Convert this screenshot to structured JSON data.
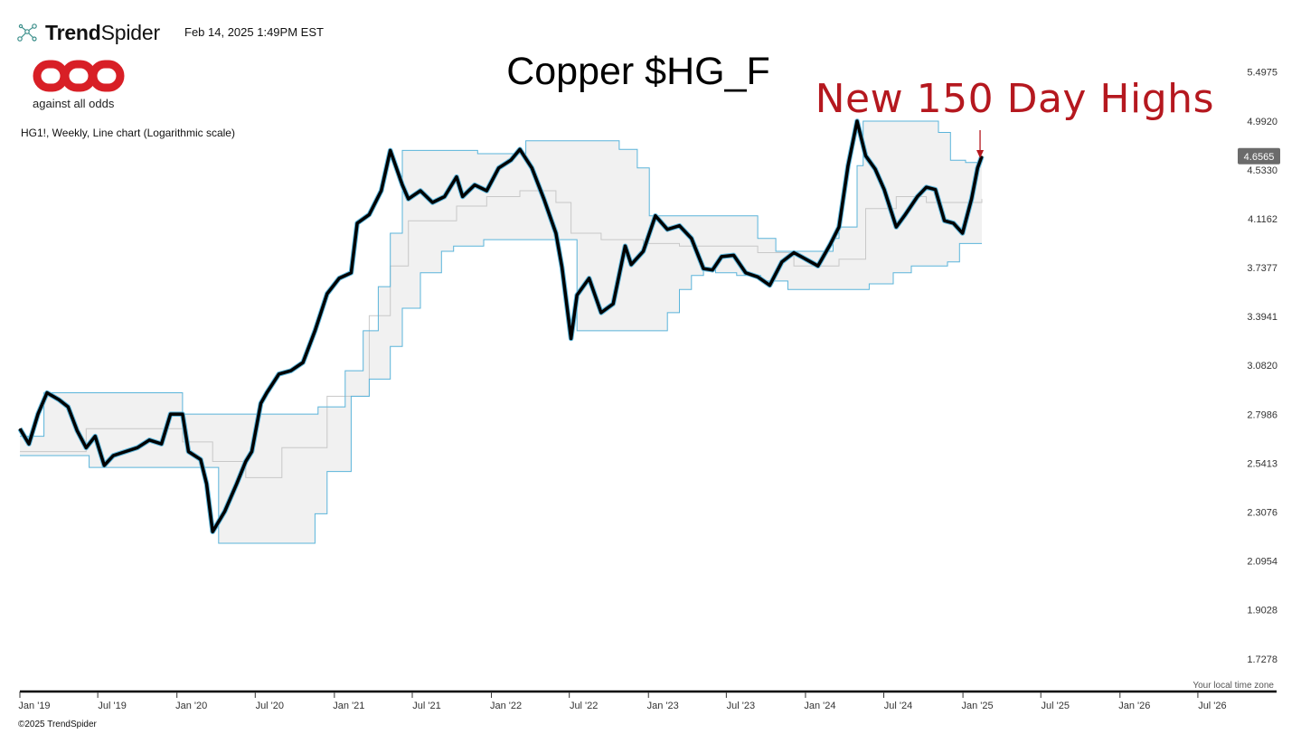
{
  "header": {
    "brand_bold": "Trend",
    "brand_light": "Spider",
    "timestamp": "Feb 14, 2025 1:49PM EST",
    "logo_tagline": "against all odds",
    "chart_description": "HG1!, Weekly, Line chart (Logarithmic scale)"
  },
  "footer": {
    "copyright": "©2025 TrendSpider",
    "timezone_note": "Your local time zone"
  },
  "colors": {
    "price_line": "#000000",
    "channel_line": "#5ab4da",
    "channel_fill": "#f1f1f1",
    "midline": "#c8c8c8",
    "annotation_red": "#b5181f",
    "logo_red": "#d81f26"
  },
  "chart_data": {
    "type": "line",
    "title": "Copper $HG_F",
    "annotation": "New 150 Day Highs",
    "scale": "log",
    "last_price_label": "4.6565",
    "y_ticks": [
      "5.4975",
      "4.9920",
      "4.5330",
      "4.1162",
      "3.7377",
      "3.3941",
      "3.0820",
      "2.7986",
      "2.5413",
      "2.3076",
      "2.0954",
      "1.9028",
      "1.7278"
    ],
    "x_ticks": [
      "Jan '19",
      "Jul '19",
      "Jan '20",
      "Jul '20",
      "Jan '21",
      "Jul '21",
      "Jan '22",
      "Jul '22",
      "Jan '23",
      "Jul '23",
      "Jan '24",
      "Jul '24",
      "Jan '25",
      "Jul '25",
      "Jan '26",
      "Jul '26"
    ],
    "x_range": [
      "2019-01-01",
      "2026-12-31"
    ],
    "ylim": [
      1.6786,
      5.6637
    ],
    "series": [
      {
        "type": "line",
        "x": [
          "2019-01-01",
          "2019-01-22",
          "2019-02-12",
          "2019-03-05",
          "2019-04-02",
          "2019-04-23",
          "2019-05-14",
          "2019-06-04",
          "2019-06-25",
          "2019-07-16",
          "2019-08-06",
          "2019-09-03",
          "2019-10-01",
          "2019-10-29",
          "2019-11-26",
          "2019-12-17",
          "2020-01-14",
          "2020-01-28",
          "2020-02-25",
          "2020-03-10",
          "2020-03-24",
          "2020-04-21",
          "2020-05-19",
          "2020-06-09",
          "2020-06-23",
          "2020-07-14",
          "2020-07-28",
          "2020-08-25",
          "2020-09-22",
          "2020-10-20",
          "2020-11-17",
          "2020-12-15",
          "2021-01-12",
          "2021-02-09",
          "2021-02-23",
          "2021-03-23",
          "2021-04-20",
          "2021-05-11",
          "2021-06-08",
          "2021-06-22",
          "2021-07-20",
          "2021-08-17",
          "2021-09-14",
          "2021-10-12",
          "2021-10-26",
          "2021-11-23",
          "2021-12-21",
          "2022-01-18",
          "2022-02-15",
          "2022-03-08",
          "2022-04-05",
          "2022-05-03",
          "2022-05-31",
          "2022-06-14",
          "2022-07-05",
          "2022-07-19",
          "2022-08-16",
          "2022-09-13",
          "2022-10-11",
          "2022-11-08",
          "2022-11-22",
          "2022-12-20",
          "2023-01-17",
          "2023-02-14",
          "2023-03-14",
          "2023-04-11",
          "2023-05-09",
          "2023-05-30",
          "2023-06-20",
          "2023-07-18",
          "2023-08-15",
          "2023-09-12",
          "2023-10-10",
          "2023-11-07",
          "2023-12-05",
          "2024-01-02",
          "2024-01-30",
          "2024-02-27",
          "2024-03-19",
          "2024-04-09",
          "2024-04-30",
          "2024-05-20",
          "2024-06-11",
          "2024-07-02",
          "2024-07-30",
          "2024-08-20",
          "2024-09-17",
          "2024-10-08",
          "2024-10-29",
          "2024-11-19",
          "2024-12-10",
          "2024-12-31",
          "2025-01-21",
          "2025-02-04",
          "2025-02-14"
        ],
        "y": [
          2.72,
          2.64,
          2.8,
          2.92,
          2.88,
          2.84,
          2.71,
          2.62,
          2.68,
          2.53,
          2.58,
          2.6,
          2.62,
          2.66,
          2.64,
          2.8,
          2.8,
          2.6,
          2.56,
          2.44,
          2.22,
          2.31,
          2.44,
          2.55,
          2.6,
          2.86,
          2.92,
          3.03,
          3.05,
          3.1,
          3.3,
          3.55,
          3.66,
          3.7,
          4.08,
          4.15,
          4.35,
          4.71,
          4.4,
          4.28,
          4.35,
          4.25,
          4.3,
          4.47,
          4.3,
          4.4,
          4.35,
          4.55,
          4.62,
          4.72,
          4.55,
          4.28,
          4.0,
          3.74,
          3.25,
          3.54,
          3.66,
          3.42,
          3.48,
          3.9,
          3.76,
          3.86,
          4.14,
          4.03,
          4.06,
          3.96,
          3.73,
          3.72,
          3.82,
          3.83,
          3.7,
          3.67,
          3.61,
          3.78,
          3.85,
          3.8,
          3.75,
          3.91,
          4.05,
          4.57,
          4.99,
          4.66,
          4.54,
          4.36,
          4.05,
          4.15,
          4.3,
          4.38,
          4.36,
          4.1,
          4.08,
          4.0,
          4.28,
          4.55,
          4.6565
        ]
      },
      {
        "name": "upper",
        "type": "step",
        "x": [
          "2019-01-01",
          "2019-02-12",
          "2019-02-26",
          "2019-10-29",
          "2020-01-14",
          "2020-08-25",
          "2020-09-29",
          "2020-11-24",
          "2021-01-26",
          "2021-03-09",
          "2021-04-13",
          "2021-05-11",
          "2021-06-08",
          "2021-11-02",
          "2021-11-30",
          "2022-01-18",
          "2022-02-01",
          "2022-03-08",
          "2022-03-22",
          "2022-04-05",
          "2022-09-13",
          "2022-10-25",
          "2022-11-22",
          "2022-12-06",
          "2023-01-03",
          "2023-07-04",
          "2023-09-12",
          "2023-10-24",
          "2023-11-21",
          "2024-01-30",
          "2024-02-13",
          "2024-03-05",
          "2024-03-19",
          "2024-04-30",
          "2024-05-14",
          "2024-05-20",
          "2024-10-08",
          "2024-11-05",
          "2024-12-03",
          "2025-01-07",
          "2025-02-14"
        ],
        "y": [
          2.68,
          2.68,
          2.92,
          2.92,
          2.8,
          2.8,
          2.8,
          2.84,
          3.05,
          3.3,
          3.6,
          4.0,
          4.71,
          4.71,
          4.68,
          4.68,
          4.68,
          4.68,
          4.8,
          4.8,
          4.8,
          4.72,
          4.72,
          4.55,
          4.14,
          4.14,
          3.96,
          3.86,
          3.86,
          3.86,
          3.86,
          3.96,
          4.05,
          4.57,
          4.99,
          4.99,
          4.99,
          4.88,
          4.62,
          4.6,
          4.6565
        ]
      },
      {
        "name": "lower",
        "type": "step",
        "x": [
          "2019-01-01",
          "2019-05-14",
          "2019-06-11",
          "2019-09-03",
          "2020-01-14",
          "2020-03-17",
          "2020-04-07",
          "2020-08-04",
          "2020-09-01",
          "2020-09-29",
          "2020-11-03",
          "2020-11-17",
          "2020-12-15",
          "2021-02-09",
          "2021-03-23",
          "2021-05-11",
          "2021-06-08",
          "2021-07-20",
          "2021-09-07",
          "2021-10-05",
          "2021-12-14",
          "2022-01-18",
          "2022-06-28",
          "2022-07-19",
          "2022-09-27",
          "2022-12-13",
          "2023-01-10",
          "2023-02-14",
          "2023-03-14",
          "2023-04-11",
          "2023-05-09",
          "2023-06-06",
          "2023-07-25",
          "2023-09-19",
          "2023-11-21",
          "2024-01-09",
          "2024-02-27",
          "2024-04-30",
          "2024-05-28",
          "2024-07-23",
          "2024-09-03",
          "2024-10-01",
          "2024-11-26",
          "2024-12-24",
          "2025-02-14"
        ],
        "y": [
          2.58,
          2.58,
          2.52,
          2.52,
          2.52,
          2.52,
          2.17,
          2.17,
          2.17,
          2.17,
          2.17,
          2.3,
          2.5,
          2.9,
          3.0,
          3.2,
          3.45,
          3.7,
          3.86,
          3.9,
          3.95,
          3.95,
          3.95,
          3.3,
          3.3,
          3.3,
          3.3,
          3.42,
          3.58,
          3.68,
          3.72,
          3.7,
          3.68,
          3.64,
          3.58,
          3.58,
          3.58,
          3.58,
          3.62,
          3.7,
          3.75,
          3.75,
          3.78,
          3.92,
          3.92
        ]
      },
      {
        "name": "mid",
        "type": "step",
        "x": [
          "2019-01-01",
          "2019-06-04",
          "2019-10-01",
          "2020-01-14",
          "2020-03-24",
          "2020-06-09",
          "2020-09-01",
          "2020-12-15",
          "2021-03-23",
          "2021-05-11",
          "2021-06-22",
          "2021-10-12",
          "2021-12-21",
          "2022-03-08",
          "2022-05-31",
          "2022-07-05",
          "2022-09-13",
          "2022-12-20",
          "2023-03-14",
          "2023-06-20",
          "2023-09-12",
          "2023-12-05",
          "2024-03-19",
          "2024-05-20",
          "2024-07-30",
          "2024-10-08",
          "2025-01-07",
          "2025-02-14"
        ],
        "y": [
          2.6,
          2.72,
          2.72,
          2.65,
          2.55,
          2.47,
          2.62,
          2.9,
          3.4,
          3.75,
          4.1,
          4.22,
          4.3,
          4.35,
          4.25,
          4.0,
          3.95,
          3.92,
          3.9,
          3.9,
          3.85,
          3.75,
          3.8,
          4.2,
          4.3,
          4.25,
          4.25,
          4.28
        ]
      }
    ]
  }
}
